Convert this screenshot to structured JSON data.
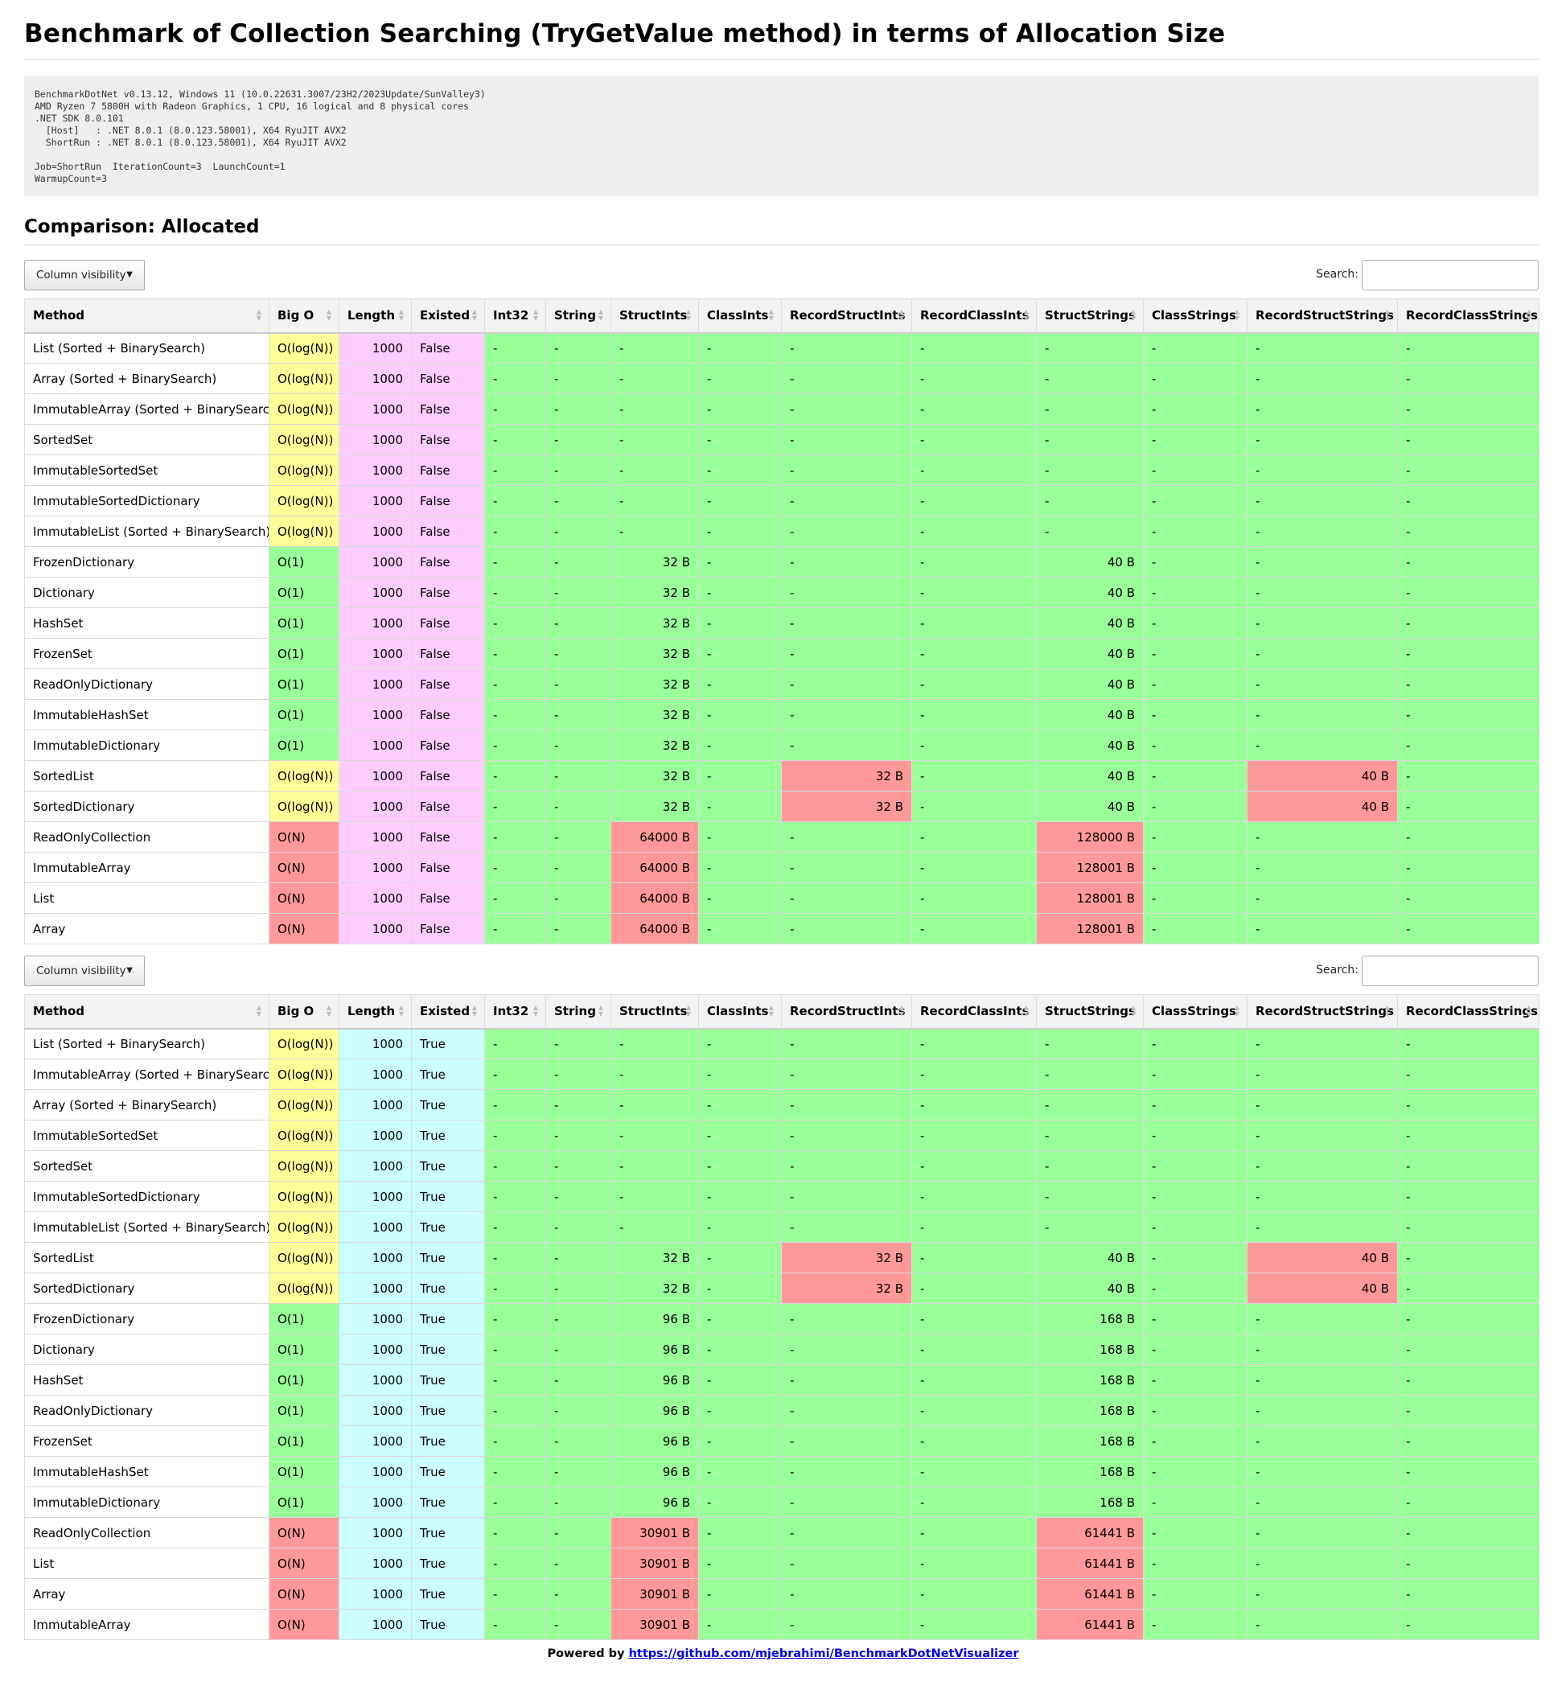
{
  "title": "Benchmark of Collection Searching (TryGetValue method) in terms of Allocation Size",
  "environment": "BenchmarkDotNet v0.13.12, Windows 11 (10.0.22631.3007/23H2/2023Update/SunValley3)\nAMD Ryzen 7 5800H with Radeon Graphics, 1 CPU, 16 logical and 8 physical cores\n.NET SDK 8.0.101\n  [Host]   : .NET 8.0.1 (8.0.123.58001), X64 RyuJIT AVX2\n  ShortRun : .NET 8.0.1 (8.0.123.58001), X64 RyuJIT AVX2\n\nJob=ShortRun  IterationCount=3  LaunchCount=1\nWarmupCount=3",
  "section_title": "Comparison: Allocated",
  "controls": {
    "column_visibility_label": "Column visibility",
    "search_label": "Search:",
    "search_value": ""
  },
  "columns": [
    "Method",
    "Big O",
    "Length",
    "Existed",
    "Int32",
    "String",
    "StructInts",
    "ClassInts",
    "RecordStructInts",
    "RecordClassInts",
    "StructStrings",
    "ClassStrings",
    "RecordStructStrings",
    "RecordClassStrings"
  ],
  "colors": {
    "yellow": "#ffff99",
    "green": "#99ff99",
    "red": "#ff9999",
    "pink": "#ffccff",
    "cyan": "#ccffff",
    "header": "#f2f2f2"
  },
  "tables": [
    {
      "rows": [
        {
          "method": "List (Sorted + BinarySearch)",
          "bigo": "O(log(N))",
          "length": "1000",
          "existed": "False",
          "int32": "-",
          "string": "-",
          "structints": "-",
          "classints": "-",
          "recordstructints": "-",
          "recordclassints": "-",
          "structstrings": "-",
          "classstrings": "-",
          "recordstructstrings": "-",
          "recordclassstrings": "-"
        },
        {
          "method": "Array (Sorted + BinarySearch)",
          "bigo": "O(log(N))",
          "length": "1000",
          "existed": "False",
          "int32": "-",
          "string": "-",
          "structints": "-",
          "classints": "-",
          "recordstructints": "-",
          "recordclassints": "-",
          "structstrings": "-",
          "classstrings": "-",
          "recordstructstrings": "-",
          "recordclassstrings": "-"
        },
        {
          "method": "ImmutableArray (Sorted + BinarySearch)",
          "bigo": "O(log(N))",
          "length": "1000",
          "existed": "False",
          "int32": "-",
          "string": "-",
          "structints": "-",
          "classints": "-",
          "recordstructints": "-",
          "recordclassints": "-",
          "structstrings": "-",
          "classstrings": "-",
          "recordstructstrings": "-",
          "recordclassstrings": "-"
        },
        {
          "method": "SortedSet",
          "bigo": "O(log(N))",
          "length": "1000",
          "existed": "False",
          "int32": "-",
          "string": "-",
          "structints": "-",
          "classints": "-",
          "recordstructints": "-",
          "recordclassints": "-",
          "structstrings": "-",
          "classstrings": "-",
          "recordstructstrings": "-",
          "recordclassstrings": "-"
        },
        {
          "method": "ImmutableSortedSet",
          "bigo": "O(log(N))",
          "length": "1000",
          "existed": "False",
          "int32": "-",
          "string": "-",
          "structints": "-",
          "classints": "-",
          "recordstructints": "-",
          "recordclassints": "-",
          "structstrings": "-",
          "classstrings": "-",
          "recordstructstrings": "-",
          "recordclassstrings": "-"
        },
        {
          "method": "ImmutableSortedDictionary",
          "bigo": "O(log(N))",
          "length": "1000",
          "existed": "False",
          "int32": "-",
          "string": "-",
          "structints": "-",
          "classints": "-",
          "recordstructints": "-",
          "recordclassints": "-",
          "structstrings": "-",
          "classstrings": "-",
          "recordstructstrings": "-",
          "recordclassstrings": "-"
        },
        {
          "method": "ImmutableList (Sorted + BinarySearch)",
          "bigo": "O(log(N))",
          "length": "1000",
          "existed": "False",
          "int32": "-",
          "string": "-",
          "structints": "-",
          "classints": "-",
          "recordstructints": "-",
          "recordclassints": "-",
          "structstrings": "-",
          "classstrings": "-",
          "recordstructstrings": "-",
          "recordclassstrings": "-"
        },
        {
          "method": "FrozenDictionary",
          "bigo": "O(1)",
          "length": "1000",
          "existed": "False",
          "int32": "-",
          "string": "-",
          "structints": "32 B",
          "classints": "-",
          "recordstructints": "-",
          "recordclassints": "-",
          "structstrings": "40 B",
          "classstrings": "-",
          "recordstructstrings": "-",
          "recordclassstrings": "-"
        },
        {
          "method": "Dictionary",
          "bigo": "O(1)",
          "length": "1000",
          "existed": "False",
          "int32": "-",
          "string": "-",
          "structints": "32 B",
          "classints": "-",
          "recordstructints": "-",
          "recordclassints": "-",
          "structstrings": "40 B",
          "classstrings": "-",
          "recordstructstrings": "-",
          "recordclassstrings": "-"
        },
        {
          "method": "HashSet",
          "bigo": "O(1)",
          "length": "1000",
          "existed": "False",
          "int32": "-",
          "string": "-",
          "structints": "32 B",
          "classints": "-",
          "recordstructints": "-",
          "recordclassints": "-",
          "structstrings": "40 B",
          "classstrings": "-",
          "recordstructstrings": "-",
          "recordclassstrings": "-"
        },
        {
          "method": "FrozenSet",
          "bigo": "O(1)",
          "length": "1000",
          "existed": "False",
          "int32": "-",
          "string": "-",
          "structints": "32 B",
          "classints": "-",
          "recordstructints": "-",
          "recordclassints": "-",
          "structstrings": "40 B",
          "classstrings": "-",
          "recordstructstrings": "-",
          "recordclassstrings": "-"
        },
        {
          "method": "ReadOnlyDictionary",
          "bigo": "O(1)",
          "length": "1000",
          "existed": "False",
          "int32": "-",
          "string": "-",
          "structints": "32 B",
          "classints": "-",
          "recordstructints": "-",
          "recordclassints": "-",
          "structstrings": "40 B",
          "classstrings": "-",
          "recordstructstrings": "-",
          "recordclassstrings": "-"
        },
        {
          "method": "ImmutableHashSet",
          "bigo": "O(1)",
          "length": "1000",
          "existed": "False",
          "int32": "-",
          "string": "-",
          "structints": "32 B",
          "classints": "-",
          "recordstructints": "-",
          "recordclassints": "-",
          "structstrings": "40 B",
          "classstrings": "-",
          "recordstructstrings": "-",
          "recordclassstrings": "-"
        },
        {
          "method": "ImmutableDictionary",
          "bigo": "O(1)",
          "length": "1000",
          "existed": "False",
          "int32": "-",
          "string": "-",
          "structints": "32 B",
          "classints": "-",
          "recordstructints": "-",
          "recordclassints": "-",
          "structstrings": "40 B",
          "classstrings": "-",
          "recordstructstrings": "-",
          "recordclassstrings": "-"
        },
        {
          "method": "SortedList",
          "bigo": "O(log(N))",
          "length": "1000",
          "existed": "False",
          "int32": "-",
          "string": "-",
          "structints": "32 B",
          "classints": "-",
          "recordstructints": "32 B",
          "recordclassints": "-",
          "structstrings": "40 B",
          "classstrings": "-",
          "recordstructstrings": "40 B",
          "recordclassstrings": "-"
        },
        {
          "method": "SortedDictionary",
          "bigo": "O(log(N))",
          "length": "1000",
          "existed": "False",
          "int32": "-",
          "string": "-",
          "structints": "32 B",
          "classints": "-",
          "recordstructints": "32 B",
          "recordclassints": "-",
          "structstrings": "40 B",
          "classstrings": "-",
          "recordstructstrings": "40 B",
          "recordclassstrings": "-"
        },
        {
          "method": "ReadOnlyCollection",
          "bigo": "O(N)",
          "length": "1000",
          "existed": "False",
          "int32": "-",
          "string": "-",
          "structints": "64000 B",
          "classints": "-",
          "recordstructints": "-",
          "recordclassints": "-",
          "structstrings": "128000 B",
          "classstrings": "-",
          "recordstructstrings": "-",
          "recordclassstrings": "-"
        },
        {
          "method": "ImmutableArray",
          "bigo": "O(N)",
          "length": "1000",
          "existed": "False",
          "int32": "-",
          "string": "-",
          "structints": "64000 B",
          "classints": "-",
          "recordstructints": "-",
          "recordclassints": "-",
          "structstrings": "128001 B",
          "classstrings": "-",
          "recordstructstrings": "-",
          "recordclassstrings": "-"
        },
        {
          "method": "List",
          "bigo": "O(N)",
          "length": "1000",
          "existed": "False",
          "int32": "-",
          "string": "-",
          "structints": "64000 B",
          "classints": "-",
          "recordstructints": "-",
          "recordclassints": "-",
          "structstrings": "128001 B",
          "classstrings": "-",
          "recordstructstrings": "-",
          "recordclassstrings": "-"
        },
        {
          "method": "Array",
          "bigo": "O(N)",
          "length": "1000",
          "existed": "False",
          "int32": "-",
          "string": "-",
          "structints": "64000 B",
          "classints": "-",
          "recordstructints": "-",
          "recordclassints": "-",
          "structstrings": "128001 B",
          "classstrings": "-",
          "recordstructstrings": "-",
          "recordclassstrings": "-"
        }
      ]
    },
    {
      "rows": [
        {
          "method": "List (Sorted + BinarySearch)",
          "bigo": "O(log(N))",
          "length": "1000",
          "existed": "True",
          "int32": "-",
          "string": "-",
          "structints": "-",
          "classints": "-",
          "recordstructints": "-",
          "recordclassints": "-",
          "structstrings": "-",
          "classstrings": "-",
          "recordstructstrings": "-",
          "recordclassstrings": "-"
        },
        {
          "method": "ImmutableArray (Sorted + BinarySearch)",
          "bigo": "O(log(N))",
          "length": "1000",
          "existed": "True",
          "int32": "-",
          "string": "-",
          "structints": "-",
          "classints": "-",
          "recordstructints": "-",
          "recordclassints": "-",
          "structstrings": "-",
          "classstrings": "-",
          "recordstructstrings": "-",
          "recordclassstrings": "-"
        },
        {
          "method": "Array (Sorted + BinarySearch)",
          "bigo": "O(log(N))",
          "length": "1000",
          "existed": "True",
          "int32": "-",
          "string": "-",
          "structints": "-",
          "classints": "-",
          "recordstructints": "-",
          "recordclassints": "-",
          "structstrings": "-",
          "classstrings": "-",
          "recordstructstrings": "-",
          "recordclassstrings": "-"
        },
        {
          "method": "ImmutableSortedSet",
          "bigo": "O(log(N))",
          "length": "1000",
          "existed": "True",
          "int32": "-",
          "string": "-",
          "structints": "-",
          "classints": "-",
          "recordstructints": "-",
          "recordclassints": "-",
          "structstrings": "-",
          "classstrings": "-",
          "recordstructstrings": "-",
          "recordclassstrings": "-"
        },
        {
          "method": "SortedSet",
          "bigo": "O(log(N))",
          "length": "1000",
          "existed": "True",
          "int32": "-",
          "string": "-",
          "structints": "-",
          "classints": "-",
          "recordstructints": "-",
          "recordclassints": "-",
          "structstrings": "-",
          "classstrings": "-",
          "recordstructstrings": "-",
          "recordclassstrings": "-"
        },
        {
          "method": "ImmutableSortedDictionary",
          "bigo": "O(log(N))",
          "length": "1000",
          "existed": "True",
          "int32": "-",
          "string": "-",
          "structints": "-",
          "classints": "-",
          "recordstructints": "-",
          "recordclassints": "-",
          "structstrings": "-",
          "classstrings": "-",
          "recordstructstrings": "-",
          "recordclassstrings": "-"
        },
        {
          "method": "ImmutableList (Sorted + BinarySearch)",
          "bigo": "O(log(N))",
          "length": "1000",
          "existed": "True",
          "int32": "-",
          "string": "-",
          "structints": "-",
          "classints": "-",
          "recordstructints": "-",
          "recordclassints": "-",
          "structstrings": "-",
          "classstrings": "-",
          "recordstructstrings": "-",
          "recordclassstrings": "-"
        },
        {
          "method": "SortedList",
          "bigo": "O(log(N))",
          "length": "1000",
          "existed": "True",
          "int32": "-",
          "string": "-",
          "structints": "32 B",
          "classints": "-",
          "recordstructints": "32 B",
          "recordclassints": "-",
          "structstrings": "40 B",
          "classstrings": "-",
          "recordstructstrings": "40 B",
          "recordclassstrings": "-"
        },
        {
          "method": "SortedDictionary",
          "bigo": "O(log(N))",
          "length": "1000",
          "existed": "True",
          "int32": "-",
          "string": "-",
          "structints": "32 B",
          "classints": "-",
          "recordstructints": "32 B",
          "recordclassints": "-",
          "structstrings": "40 B",
          "classstrings": "-",
          "recordstructstrings": "40 B",
          "recordclassstrings": "-"
        },
        {
          "method": "FrozenDictionary",
          "bigo": "O(1)",
          "length": "1000",
          "existed": "True",
          "int32": "-",
          "string": "-",
          "structints": "96 B",
          "classints": "-",
          "recordstructints": "-",
          "recordclassints": "-",
          "structstrings": "168 B",
          "classstrings": "-",
          "recordstructstrings": "-",
          "recordclassstrings": "-"
        },
        {
          "method": "Dictionary",
          "bigo": "O(1)",
          "length": "1000",
          "existed": "True",
          "int32": "-",
          "string": "-",
          "structints": "96 B",
          "classints": "-",
          "recordstructints": "-",
          "recordclassints": "-",
          "structstrings": "168 B",
          "classstrings": "-",
          "recordstructstrings": "-",
          "recordclassstrings": "-"
        },
        {
          "method": "HashSet",
          "bigo": "O(1)",
          "length": "1000",
          "existed": "True",
          "int32": "-",
          "string": "-",
          "structints": "96 B",
          "classints": "-",
          "recordstructints": "-",
          "recordclassints": "-",
          "structstrings": "168 B",
          "classstrings": "-",
          "recordstructstrings": "-",
          "recordclassstrings": "-"
        },
        {
          "method": "ReadOnlyDictionary",
          "bigo": "O(1)",
          "length": "1000",
          "existed": "True",
          "int32": "-",
          "string": "-",
          "structints": "96 B",
          "classints": "-",
          "recordstructints": "-",
          "recordclassints": "-",
          "structstrings": "168 B",
          "classstrings": "-",
          "recordstructstrings": "-",
          "recordclassstrings": "-"
        },
        {
          "method": "FrozenSet",
          "bigo": "O(1)",
          "length": "1000",
          "existed": "True",
          "int32": "-",
          "string": "-",
          "structints": "96 B",
          "classints": "-",
          "recordstructints": "-",
          "recordclassints": "-",
          "structstrings": "168 B",
          "classstrings": "-",
          "recordstructstrings": "-",
          "recordclassstrings": "-"
        },
        {
          "method": "ImmutableHashSet",
          "bigo": "O(1)",
          "length": "1000",
          "existed": "True",
          "int32": "-",
          "string": "-",
          "structints": "96 B",
          "classints": "-",
          "recordstructints": "-",
          "recordclassints": "-",
          "structstrings": "168 B",
          "classstrings": "-",
          "recordstructstrings": "-",
          "recordclassstrings": "-"
        },
        {
          "method": "ImmutableDictionary",
          "bigo": "O(1)",
          "length": "1000",
          "existed": "True",
          "int32": "-",
          "string": "-",
          "structints": "96 B",
          "classints": "-",
          "recordstructints": "-",
          "recordclassints": "-",
          "structstrings": "168 B",
          "classstrings": "-",
          "recordstructstrings": "-",
          "recordclassstrings": "-"
        },
        {
          "method": "ReadOnlyCollection",
          "bigo": "O(N)",
          "length": "1000",
          "existed": "True",
          "int32": "-",
          "string": "-",
          "structints": "30901 B",
          "classints": "-",
          "recordstructints": "-",
          "recordclassints": "-",
          "structstrings": "61441 B",
          "classstrings": "-",
          "recordstructstrings": "-",
          "recordclassstrings": "-"
        },
        {
          "method": "List",
          "bigo": "O(N)",
          "length": "1000",
          "existed": "True",
          "int32": "-",
          "string": "-",
          "structints": "30901 B",
          "classints": "-",
          "recordstructints": "-",
          "recordclassints": "-",
          "structstrings": "61441 B",
          "classstrings": "-",
          "recordstructstrings": "-",
          "recordclassstrings": "-"
        },
        {
          "method": "Array",
          "bigo": "O(N)",
          "length": "1000",
          "existed": "True",
          "int32": "-",
          "string": "-",
          "structints": "30901 B",
          "classints": "-",
          "recordstructints": "-",
          "recordclassints": "-",
          "structstrings": "61441 B",
          "classstrings": "-",
          "recordstructstrings": "-",
          "recordclassstrings": "-"
        },
        {
          "method": "ImmutableArray",
          "bigo": "O(N)",
          "length": "1000",
          "existed": "True",
          "int32": "-",
          "string": "-",
          "structints": "30901 B",
          "classints": "-",
          "recordstructints": "-",
          "recordclassints": "-",
          "structstrings": "61441 B",
          "classstrings": "-",
          "recordstructstrings": "-",
          "recordclassstrings": "-"
        }
      ]
    }
  ],
  "footer": {
    "prefix": "Powered by",
    "link_text": "https://github.com/mjebrahimi/BenchmarkDotNetVisualizer"
  }
}
